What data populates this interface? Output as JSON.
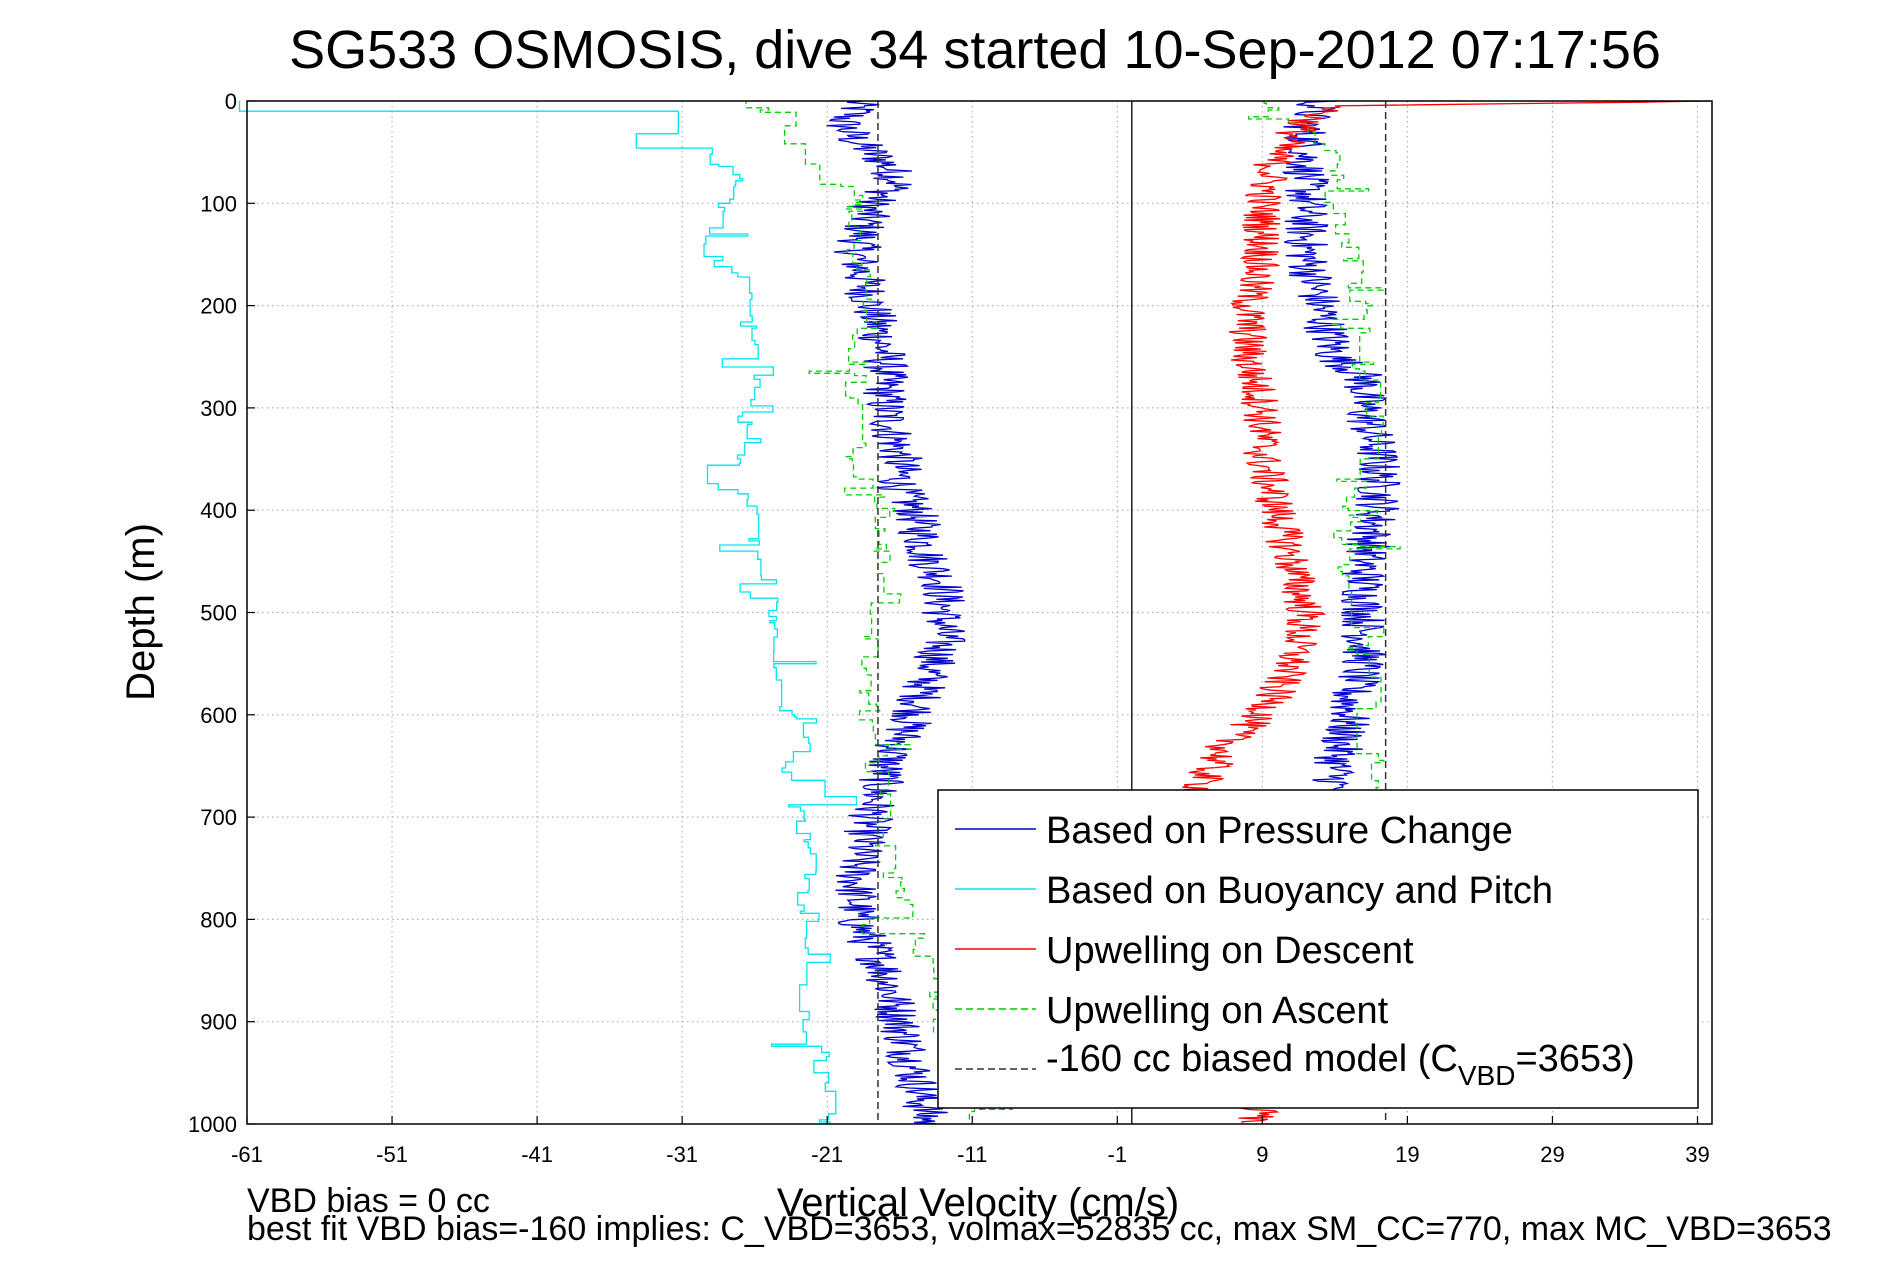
{
  "chart_data": {
    "type": "line",
    "title": "SG533 OSMOSIS, dive 34 started 10-Sep-2012 07:17:56",
    "xlabel": "Vertical Velocity (cm/s)",
    "ylabel": "Depth (m)",
    "xlim": [
      -61,
      40
    ],
    "ylim": [
      0,
      1000
    ],
    "y_reversed": true,
    "grid": true,
    "x_ticks": [
      -61,
      -51,
      -41,
      -31,
      -21,
      -11,
      -1,
      9,
      19,
      29,
      39
    ],
    "y_ticks": [
      0,
      100,
      200,
      300,
      400,
      500,
      600,
      700,
      800,
      900,
      1000
    ],
    "legend_position": "bottom-right",
    "reference_lines": [
      {
        "x": 0,
        "style": "solid",
        "color": "#000000"
      }
    ],
    "series": [
      {
        "name": "Based on Pressure Change",
        "color": "#0000cc",
        "style": "solid",
        "descent": {
          "depth": [
            0,
            10,
            20,
            40,
            60,
            80,
            100,
            150,
            200,
            250,
            300,
            350,
            380,
            400,
            450,
            470,
            500,
            530,
            560,
            600,
            650,
            700,
            750,
            800,
            850,
            900,
            950,
            1000
          ],
          "velocity": [
            -19,
            -19,
            -20,
            -19,
            -17,
            -16,
            -18,
            -19,
            -18,
            -17,
            -17,
            -16,
            -16,
            -15,
            -14,
            -13,
            -13,
            -13,
            -14,
            -15,
            -17,
            -18,
            -19,
            -19,
            -17,
            -16,
            -15,
            -14
          ]
        },
        "ascent": {
          "depth": [
            0,
            20,
            40,
            60,
            80,
            100,
            150,
            200,
            250,
            270,
            300,
            350,
            380,
            400,
            450,
            500,
            550,
            580,
            600,
            650,
            700
          ],
          "velocity": [
            13,
            12,
            12,
            12,
            12,
            12,
            12,
            13,
            14,
            16,
            16,
            17,
            17,
            17,
            16,
            16,
            16,
            15,
            15,
            14,
            14
          ]
        },
        "legend_label_key": "pressure"
      },
      {
        "name": "Based on Buoyancy and Pitch",
        "color": "#00e5ee",
        "style": "solid",
        "descent": {
          "depth": [
            0,
            5,
            15,
            30,
            50,
            80,
            100,
            140,
            170,
            200,
            230,
            260,
            300,
            330,
            370,
            400,
            450,
            480,
            520,
            560,
            600,
            620,
            650,
            700,
            750,
            800,
            850,
            900,
            950,
            1000
          ],
          "velocity": [
            -61,
            -33,
            -31,
            -34,
            -29,
            -27,
            -28,
            -30,
            -27,
            -26,
            -26,
            -25,
            -27,
            -26,
            -28,
            -26,
            -26,
            -24,
            -25,
            -24,
            -24,
            -22,
            -24,
            -23,
            -22,
            -23,
            -22,
            -23,
            -21,
            -21
          ]
        },
        "legend_label_key": "buoyancy"
      },
      {
        "name": "Upwelling on Descent",
        "color": "#ff0000",
        "style": "solid",
        "descent": {
          "depth": [
            0,
            5,
            20,
            50,
            100,
            150,
            200,
            250,
            300,
            350,
            400,
            450,
            500,
            550,
            600,
            620,
            660,
            700
          ],
          "velocity": [
            40,
            14,
            12,
            10,
            9,
            9,
            8,
            8,
            9,
            9,
            10,
            11,
            12,
            11,
            9,
            7,
            5,
            4
          ]
        },
        "extra": {
          "depth": [
            975,
            990,
            1000
          ],
          "velocity": [
            8,
            9,
            8
          ]
        },
        "legend_label_key": "descent"
      },
      {
        "name": "Upwelling on Ascent",
        "color": "#00cc00",
        "style": "dashed",
        "ascent": {
          "depth": [
            0,
            20,
            40,
            60,
            100,
            150,
            200,
            260,
            300,
            340,
            380,
            400,
            450,
            500,
            550,
            580,
            600,
            660,
            700
          ],
          "velocity": [
            9,
            11,
            13,
            14,
            14,
            15,
            16,
            16,
            17,
            16,
            16,
            15,
            15,
            15,
            16,
            17,
            16,
            17,
            17
          ]
        },
        "descent": {
          "depth": [
            0,
            20,
            50,
            80,
            100,
            150,
            200,
            250,
            300,
            350,
            400,
            450,
            500,
            550,
            600,
            650,
            700,
            750,
            800,
            850,
            900,
            950,
            1000
          ],
          "velocity": [
            -26,
            -25,
            -22,
            -20,
            -19,
            -19,
            -18,
            -19,
            -19,
            -19,
            -17,
            -17,
            -18,
            -18,
            -18,
            -17,
            -17,
            -17,
            -15,
            -14,
            -13,
            -12,
            -11
          ]
        },
        "legend_label_key": "ascent"
      },
      {
        "name": "-160 cc biased model",
        "color": "#333333",
        "style": "dashed",
        "vlines": [
          -17.5,
          17.5
        ],
        "legend_label_key": "model"
      }
    ]
  },
  "legend": {
    "pressure": "Based on Pressure Change",
    "buoyancy": "Based on Buoyancy and Pitch",
    "descent": "Upwelling on Descent",
    "ascent": "Upwelling on Ascent",
    "model_main": "-160 cc biased model (C",
    "model_sub": "VBD",
    "model_tail": "=3653)"
  },
  "footer": {
    "line1": "VBD bias = 0 cc",
    "line2": "best fit VBD bias=-160 implies: C_VBD=3653, volmax=52835 cc, max SM_CC=770, max MC_VBD=3653"
  }
}
